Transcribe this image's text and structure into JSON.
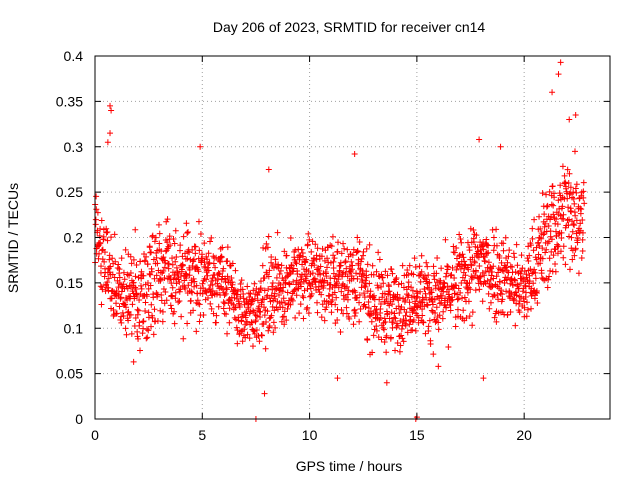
{
  "chart_data": {
    "type": "scatter",
    "title": "Day 206 of 2023, SRMTID for receiver cn14",
    "xlabel": "GPS time / hours",
    "ylabel": "SRMTID / TECUs",
    "xlim": [
      0,
      24
    ],
    "ylim": [
      0,
      0.4
    ],
    "xticks": [
      0,
      5,
      10,
      15,
      20
    ],
    "xtick_labels": [
      "0",
      "5",
      "10",
      "15",
      "20"
    ],
    "yticks": [
      0,
      0.05,
      0.1,
      0.15,
      0.2,
      0.25,
      0.3,
      0.35,
      0.4
    ],
    "ytick_labels": [
      "0",
      "0.05",
      "0.1",
      "0.15",
      "0.2",
      "0.25",
      "0.3",
      "0.35",
      "0.4"
    ],
    "grid": true,
    "marker": "plus",
    "color": "#ff0000",
    "series": [
      {
        "name": "SRMTID",
        "binned_summary": {
          "description": "Dense scatter of ~2000 points over 0–22.8 h; median and spread per hour bin estimated from the figure",
          "hour_bins": [
            0,
            1,
            2,
            3,
            4,
            5,
            6,
            7,
            8,
            9,
            10,
            11,
            12,
            13,
            14,
            15,
            16,
            17,
            18,
            19,
            20,
            21,
            22
          ],
          "median": [
            0.2,
            0.14,
            0.13,
            0.17,
            0.15,
            0.16,
            0.15,
            0.11,
            0.14,
            0.15,
            0.16,
            0.15,
            0.16,
            0.13,
            0.12,
            0.14,
            0.13,
            0.15,
            0.17,
            0.16,
            0.14,
            0.2,
            0.23
          ],
          "spread": [
            0.035,
            0.035,
            0.04,
            0.04,
            0.035,
            0.035,
            0.03,
            0.025,
            0.035,
            0.03,
            0.03,
            0.03,
            0.035,
            0.035,
            0.03,
            0.03,
            0.03,
            0.035,
            0.04,
            0.035,
            0.03,
            0.04,
            0.045
          ]
        },
        "notable_points": [
          {
            "x": 0.7,
            "y": 0.345
          },
          {
            "x": 0.75,
            "y": 0.34
          },
          {
            "x": 0.7,
            "y": 0.315
          },
          {
            "x": 0.6,
            "y": 0.305
          },
          {
            "x": 4.9,
            "y": 0.3
          },
          {
            "x": 8.1,
            "y": 0.275
          },
          {
            "x": 12.1,
            "y": 0.292
          },
          {
            "x": 17.9,
            "y": 0.308
          },
          {
            "x": 18.9,
            "y": 0.3
          },
          {
            "x": 21.7,
            "y": 0.393
          },
          {
            "x": 21.6,
            "y": 0.38
          },
          {
            "x": 21.3,
            "y": 0.36
          },
          {
            "x": 22.4,
            "y": 0.335
          },
          {
            "x": 22.1,
            "y": 0.33
          },
          {
            "x": 7.5,
            "y": 0.0
          },
          {
            "x": 7.9,
            "y": 0.028
          },
          {
            "x": 11.3,
            "y": 0.045
          },
          {
            "x": 13.6,
            "y": 0.04
          },
          {
            "x": 14.95,
            "y": 0.0
          },
          {
            "x": 15.0,
            "y": 0.002
          },
          {
            "x": 18.1,
            "y": 0.045
          },
          {
            "x": 1.8,
            "y": 0.063
          },
          {
            "x": 16.0,
            "y": 0.058
          }
        ]
      }
    ]
  }
}
